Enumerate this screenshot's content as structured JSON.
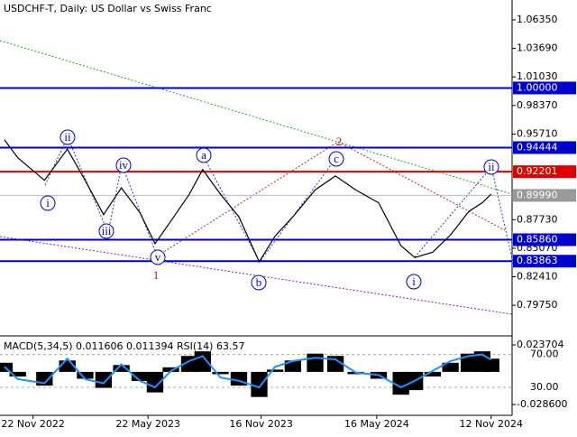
{
  "chart_data": {
    "type": "line",
    "title": "USDCHF-T, Daily:  US Dollar vs Swiss Franc",
    "x": [
      "2022-10-08",
      "2022-10-29",
      "2022-12-10",
      "2023-01-15",
      "2023-02-12",
      "2023-03-13",
      "2023-04-10",
      "2023-05-09",
      "2023-06-02",
      "2023-06-27",
      "2023-07-26",
      "2023-08-16",
      "2023-09-13",
      "2023-10-12",
      "2023-11-13",
      "2023-12-08",
      "2024-01-05",
      "2024-02-09",
      "2024-03-12",
      "2024-04-13",
      "2024-05-19",
      "2024-06-23",
      "2024-07-15",
      "2024-08-12",
      "2024-09-09",
      "2024-10-08",
      "2024-10-29",
      "2024-11-12"
    ],
    "series": [
      {
        "name": "USDCHF-T",
        "color": "#000000",
        "values": [
          0.9517,
          0.935,
          0.914,
          0.943,
          0.914,
          0.882,
          0.907,
          0.884,
          0.855,
          0.876,
          0.901,
          0.924,
          0.901,
          0.88,
          0.838,
          0.862,
          0.88,
          0.905,
          0.918,
          0.905,
          0.893,
          0.853,
          0.842,
          0.847,
          0.863,
          0.885,
          0.893,
          0.901
        ]
      }
    ],
    "xlim": [
      "2022-10-01",
      "2024-12-15"
    ],
    "xticks": [
      {
        "value": "2022-11-22",
        "label": "22 Nov 2022"
      },
      {
        "value": "2023-05-22",
        "label": "22 May 2023"
      },
      {
        "value": "2023-11-16",
        "label": "16 Nov 2023"
      },
      {
        "value": "2024-05-16",
        "label": "16 May 2024"
      },
      {
        "value": "2024-11-12",
        "label": "12 Nov 2024"
      }
    ],
    "ylim": [
      0.769,
      1.082
    ],
    "yticks": [
      {
        "value": 1.0635,
        "label": "1.06350"
      },
      {
        "value": 1.0369,
        "label": "1.03690"
      },
      {
        "value": 1.0103,
        "label": "1.01030"
      },
      {
        "value": 0.9837,
        "label": "0.98370"
      },
      {
        "value": 0.9571,
        "label": "0.95710"
      },
      {
        "value": 0.8773,
        "label": "0.87730"
      },
      {
        "value": 0.8507,
        "label": "0.85070"
      },
      {
        "value": 0.8241,
        "label": "0.82410"
      },
      {
        "value": 0.7975,
        "label": "0.79750"
      }
    ],
    "levels": [
      {
        "value": 1.0,
        "label": "1.00000",
        "color": "#0000cc"
      },
      {
        "value": 0.94444,
        "label": "0.94444",
        "color": "#0000cc"
      },
      {
        "value": 0.92201,
        "label": "0.92201",
        "color": "#e00000"
      },
      {
        "value": 0.8586,
        "label": "0.85860",
        "color": "#0000cc"
      },
      {
        "value": 0.83863,
        "label": "0.83863",
        "color": "#0000cc"
      }
    ],
    "current_price": {
      "value": 0.8999,
      "label": "0.89990"
    },
    "wave_labels": [
      "ii",
      "i",
      "iv",
      "iii",
      "v",
      "1",
      "a",
      "b",
      "c",
      "2",
      "i",
      "ii"
    ],
    "indicator": {
      "title": "MACD(5,34,5) 0.011606 0.011394 RSI(14) 63.57",
      "macd_ylim": [
        -0.0381,
        0.0308
      ],
      "macd_ticks": [
        {
          "value": 0.023704,
          "label": "0.023704"
        },
        {
          "value": -0.0286,
          "label": "-0.028600"
        }
      ],
      "rsi_ylim": [
        -4,
        91.5
      ],
      "rsi_ticks": [
        {
          "value": 70,
          "label": "70.00"
        },
        {
          "value": 30,
          "label": "30.00"
        }
      ],
      "macd": [
        0.008,
        -0.004,
        -0.012,
        0.01,
        -0.006,
        -0.014,
        0.006,
        -0.008,
        -0.018,
        0.004,
        0.014,
        0.018,
        -0.002,
        -0.012,
        -0.022,
        0.002,
        0.01,
        0.016,
        0.014,
        -0.002,
        -0.006,
        -0.02,
        -0.016,
        -0.004,
        0.008,
        0.016,
        0.018,
        0.0116
      ],
      "rsi": [
        55,
        40,
        35,
        65,
        40,
        35,
        58,
        38,
        30,
        50,
        62,
        68,
        42,
        38,
        30,
        55,
        62,
        66,
        64,
        48,
        45,
        30,
        38,
        50,
        62,
        68,
        70,
        63.57
      ],
      "rsi_color": "#1e90ff"
    }
  }
}
